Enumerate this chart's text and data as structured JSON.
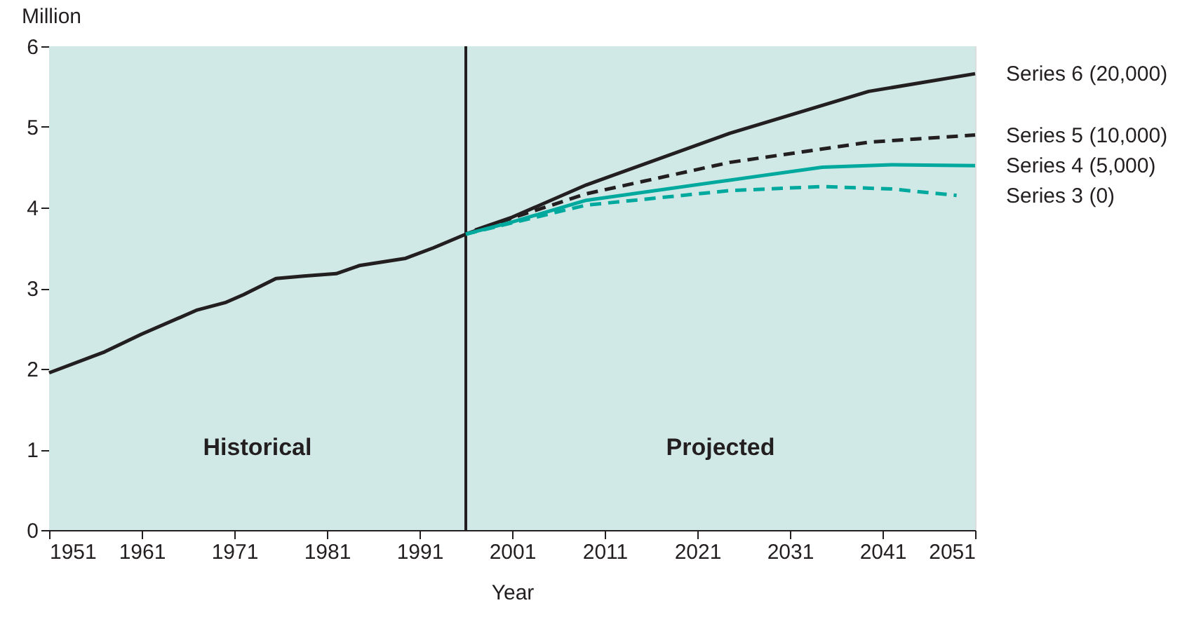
{
  "chart_data": {
    "type": "line",
    "xlabel": "Year",
    "ylabel": "Million",
    "xlim": [
      1951,
      2051
    ],
    "xticks": [
      1951,
      1961,
      1971,
      1981,
      1991,
      2001,
      2011,
      2021,
      2031,
      2041,
      2051
    ],
    "ylim": [
      0,
      6
    ],
    "yticks": [
      0,
      1,
      2,
      3,
      4,
      5,
      6
    ],
    "legend": false,
    "marker": "none",
    "bands": [
      {
        "axis": "x",
        "from": 1951,
        "to": 1996,
        "label": "Historical",
        "color": "#d0e9e6"
      },
      {
        "axis": "x",
        "from": 1996,
        "to": 2051,
        "label": "Projected",
        "color": "#d0e9e6"
      }
    ],
    "ref_lines": [
      {
        "axis": "x",
        "value": 1996,
        "color": "#231f20",
        "line_style": "solid"
      }
    ],
    "series": [
      {
        "color": "#231f20",
        "line_style": "solid",
        "x": [
          1951,
          1957,
          1961,
          1967,
          1970,
          1972,
          1975.5,
          1978.5,
          1982,
          1984.5,
          1989.5,
          1992.5,
          1996
        ],
        "values": [
          1.95,
          2.21,
          2.43,
          2.73,
          2.82,
          2.92,
          3.12,
          3.15,
          3.18,
          3.28,
          3.37,
          3.5,
          3.67
        ]
      },
      {
        "name": "Series 6 (20,000)",
        "color": "#231f20",
        "line_style": "solid",
        "x": [
          1997,
          2001,
          2009,
          2024.5,
          2039.5,
          2051
        ],
        "values": [
          3.72,
          3.88,
          4.28,
          4.92,
          5.44,
          5.66
        ]
      },
      {
        "name": "Series 5 (10,000)",
        "color": "#231f20",
        "line_style": "dashed",
        "x": [
          1996,
          2001,
          2009,
          2024.5,
          2039.5,
          2051
        ],
        "values": [
          3.67,
          3.87,
          4.17,
          4.56,
          4.81,
          4.9
        ]
      },
      {
        "name": "Series 4 (5,000)",
        "color": "#00a99d",
        "line_style": "solid",
        "x": [
          1996,
          2001,
          2009,
          2024.5,
          2034.5,
          2042,
          2051
        ],
        "values": [
          3.67,
          3.82,
          4.09,
          4.34,
          4.5,
          4.53,
          4.52
        ]
      },
      {
        "name": "Series 3 (0)",
        "color": "#00a99d",
        "line_style": "dashed",
        "x": [
          1996,
          2001,
          2009,
          2024.5,
          2034.5,
          2042,
          2049
        ],
        "values": [
          3.67,
          3.81,
          4.03,
          4.21,
          4.26,
          4.23,
          4.15
        ]
      }
    ]
  }
}
